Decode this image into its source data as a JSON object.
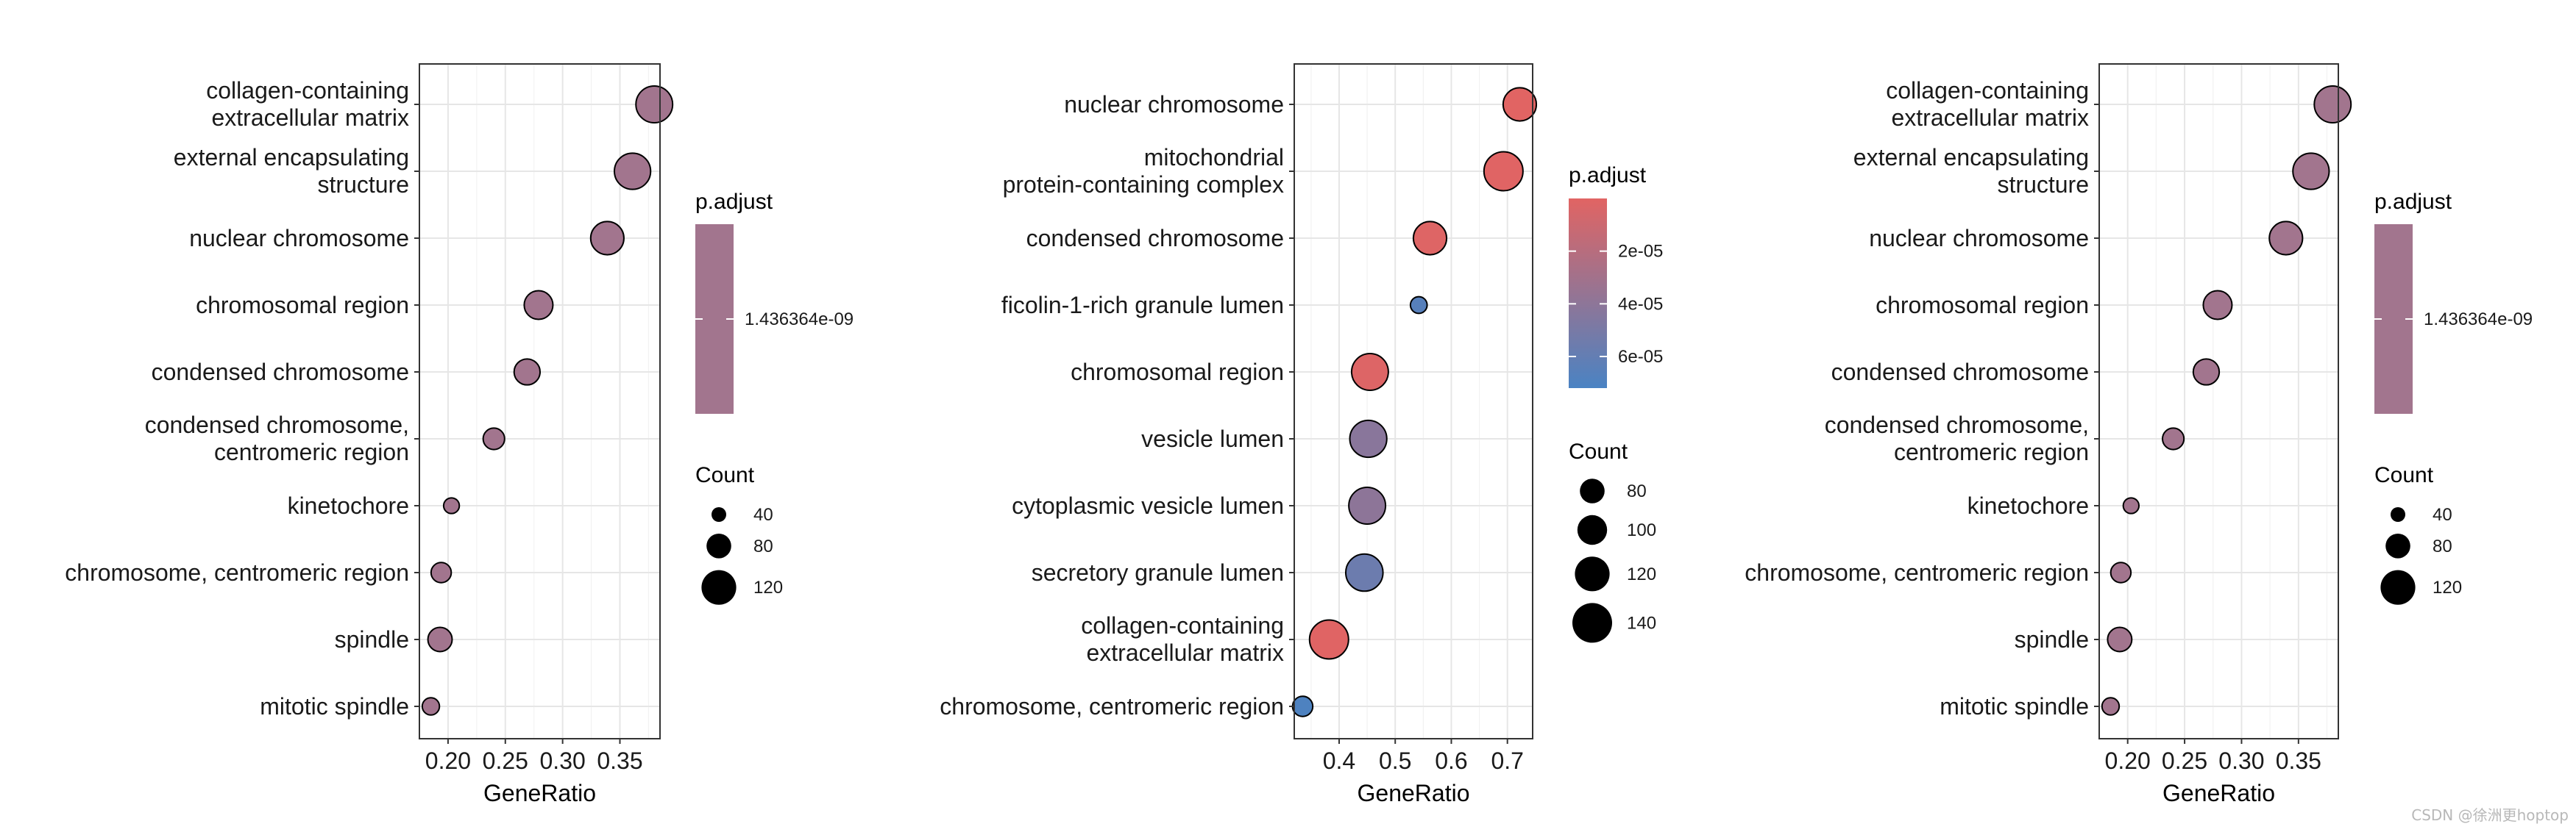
{
  "chart_data": [
    {
      "type": "scatter",
      "title": "",
      "xlabel": "GeneRatio",
      "ylabel": "",
      "xlim": [
        0.175,
        0.385
      ],
      "xticks": [
        0.2,
        0.25,
        0.3,
        0.35
      ],
      "xtick_labels": [
        "0.20",
        "0.25",
        "0.30",
        "0.35"
      ],
      "categories": [
        "collagen-containing\nextracellular matrix",
        "external encapsulating\nstructure",
        "nuclear chromosome",
        "chromosomal region",
        "condensed chromosome",
        "condensed chromosome,\ncentromeric region",
        "kinetochore",
        "chromosome, centromeric region",
        "spindle",
        "mitotic spindle"
      ],
      "gene_ratio": [
        0.38,
        0.361,
        0.339,
        0.279,
        0.269,
        0.24,
        0.203,
        0.194,
        0.193,
        0.185
      ],
      "count": [
        128,
        126,
        114,
        96,
        85,
        67,
        44,
        62,
        78,
        50
      ],
      "p_adjust": [
        1.436364e-09,
        1.436364e-09,
        1.436364e-09,
        1.436364e-09,
        1.436364e-09,
        1.436364e-09,
        1.436364e-09,
        1.436364e-09,
        1.436364e-09,
        1.436364e-09
      ],
      "color_legend": {
        "title": "p.adjust",
        "mode": "single",
        "color": "#a2758e",
        "labels": [
          "1.436364e-09"
        ]
      },
      "size_legend": {
        "title": "Count",
        "values": [
          40,
          80,
          120
        ],
        "labels": [
          "40",
          "80",
          "120"
        ]
      }
    },
    {
      "type": "scatter",
      "title": "",
      "xlabel": "GeneRatio",
      "ylabel": "",
      "xlim": [
        0.32,
        0.745
      ],
      "xticks": [
        0.4,
        0.5,
        0.6,
        0.7
      ],
      "xtick_labels": [
        "0.4",
        "0.5",
        "0.6",
        "0.7"
      ],
      "categories": [
        "nuclear chromosome",
        "mitochondrial\nprotein-containing complex",
        "condensed chromosome",
        "ficolin-1-rich granule lumen",
        "chromosomal region",
        "vesicle lumen",
        "cytoplasmic vesicle lumen",
        "secretory granule lumen",
        "collagen-containing\nextracellular matrix",
        "chromosome, centromeric region"
      ],
      "gene_ratio": [
        0.722,
        0.693,
        0.562,
        0.542,
        0.455,
        0.452,
        0.45,
        0.445,
        0.382,
        0.335
      ],
      "count": [
        114,
        137,
        114,
        48,
        128,
        129,
        128,
        130,
        137,
        62
      ],
      "p_adjust": [
        1e-07,
        5e-07,
        1.5e-06,
        6.6e-05,
        2e-06,
        4.2e-05,
        4e-05,
        5.6e-05,
        6e-07,
        7e-05
      ],
      "color_legend": {
        "title": "p.adjust",
        "mode": "gradient",
        "low_color": "#e16463",
        "high_color": "#4a83c3",
        "range": [
          0,
          7.2e-05
        ],
        "ticks": [
          2e-05,
          4e-05,
          6e-05
        ],
        "labels": [
          "2e-05",
          "4e-05",
          "6e-05"
        ]
      },
      "size_legend": {
        "title": "Count",
        "values": [
          80,
          100,
          120,
          140
        ],
        "labels": [
          "80",
          "100",
          "120",
          "140"
        ]
      }
    },
    {
      "type": "scatter",
      "title": "",
      "xlabel": "GeneRatio",
      "ylabel": "",
      "xlim": [
        0.175,
        0.385
      ],
      "xticks": [
        0.2,
        0.25,
        0.3,
        0.35
      ],
      "xtick_labels": [
        "0.20",
        "0.25",
        "0.30",
        "0.35"
      ],
      "categories": [
        "collagen-containing\nextracellular matrix",
        "external encapsulating\nstructure",
        "nuclear chromosome",
        "chromosomal region",
        "condensed chromosome",
        "condensed chromosome,\ncentromeric region",
        "kinetochore",
        "chromosome, centromeric region",
        "spindle",
        "mitotic spindle"
      ],
      "gene_ratio": [
        0.38,
        0.361,
        0.339,
        0.279,
        0.269,
        0.24,
        0.203,
        0.194,
        0.193,
        0.185
      ],
      "count": [
        128,
        126,
        114,
        96,
        85,
        67,
        44,
        62,
        78,
        50
      ],
      "p_adjust": [
        1.436364e-09,
        1.436364e-09,
        1.436364e-09,
        1.436364e-09,
        1.436364e-09,
        1.436364e-09,
        1.436364e-09,
        1.436364e-09,
        1.436364e-09,
        1.436364e-09
      ],
      "color_legend": {
        "title": "p.adjust",
        "mode": "single",
        "color": "#a2758e",
        "labels": [
          "1.436364e-09"
        ]
      },
      "size_legend": {
        "title": "Count",
        "values": [
          40,
          80,
          120
        ],
        "labels": [
          "40",
          "80",
          "120"
        ]
      }
    }
  ],
  "watermark": "CSDN @徐洲更hoptop"
}
